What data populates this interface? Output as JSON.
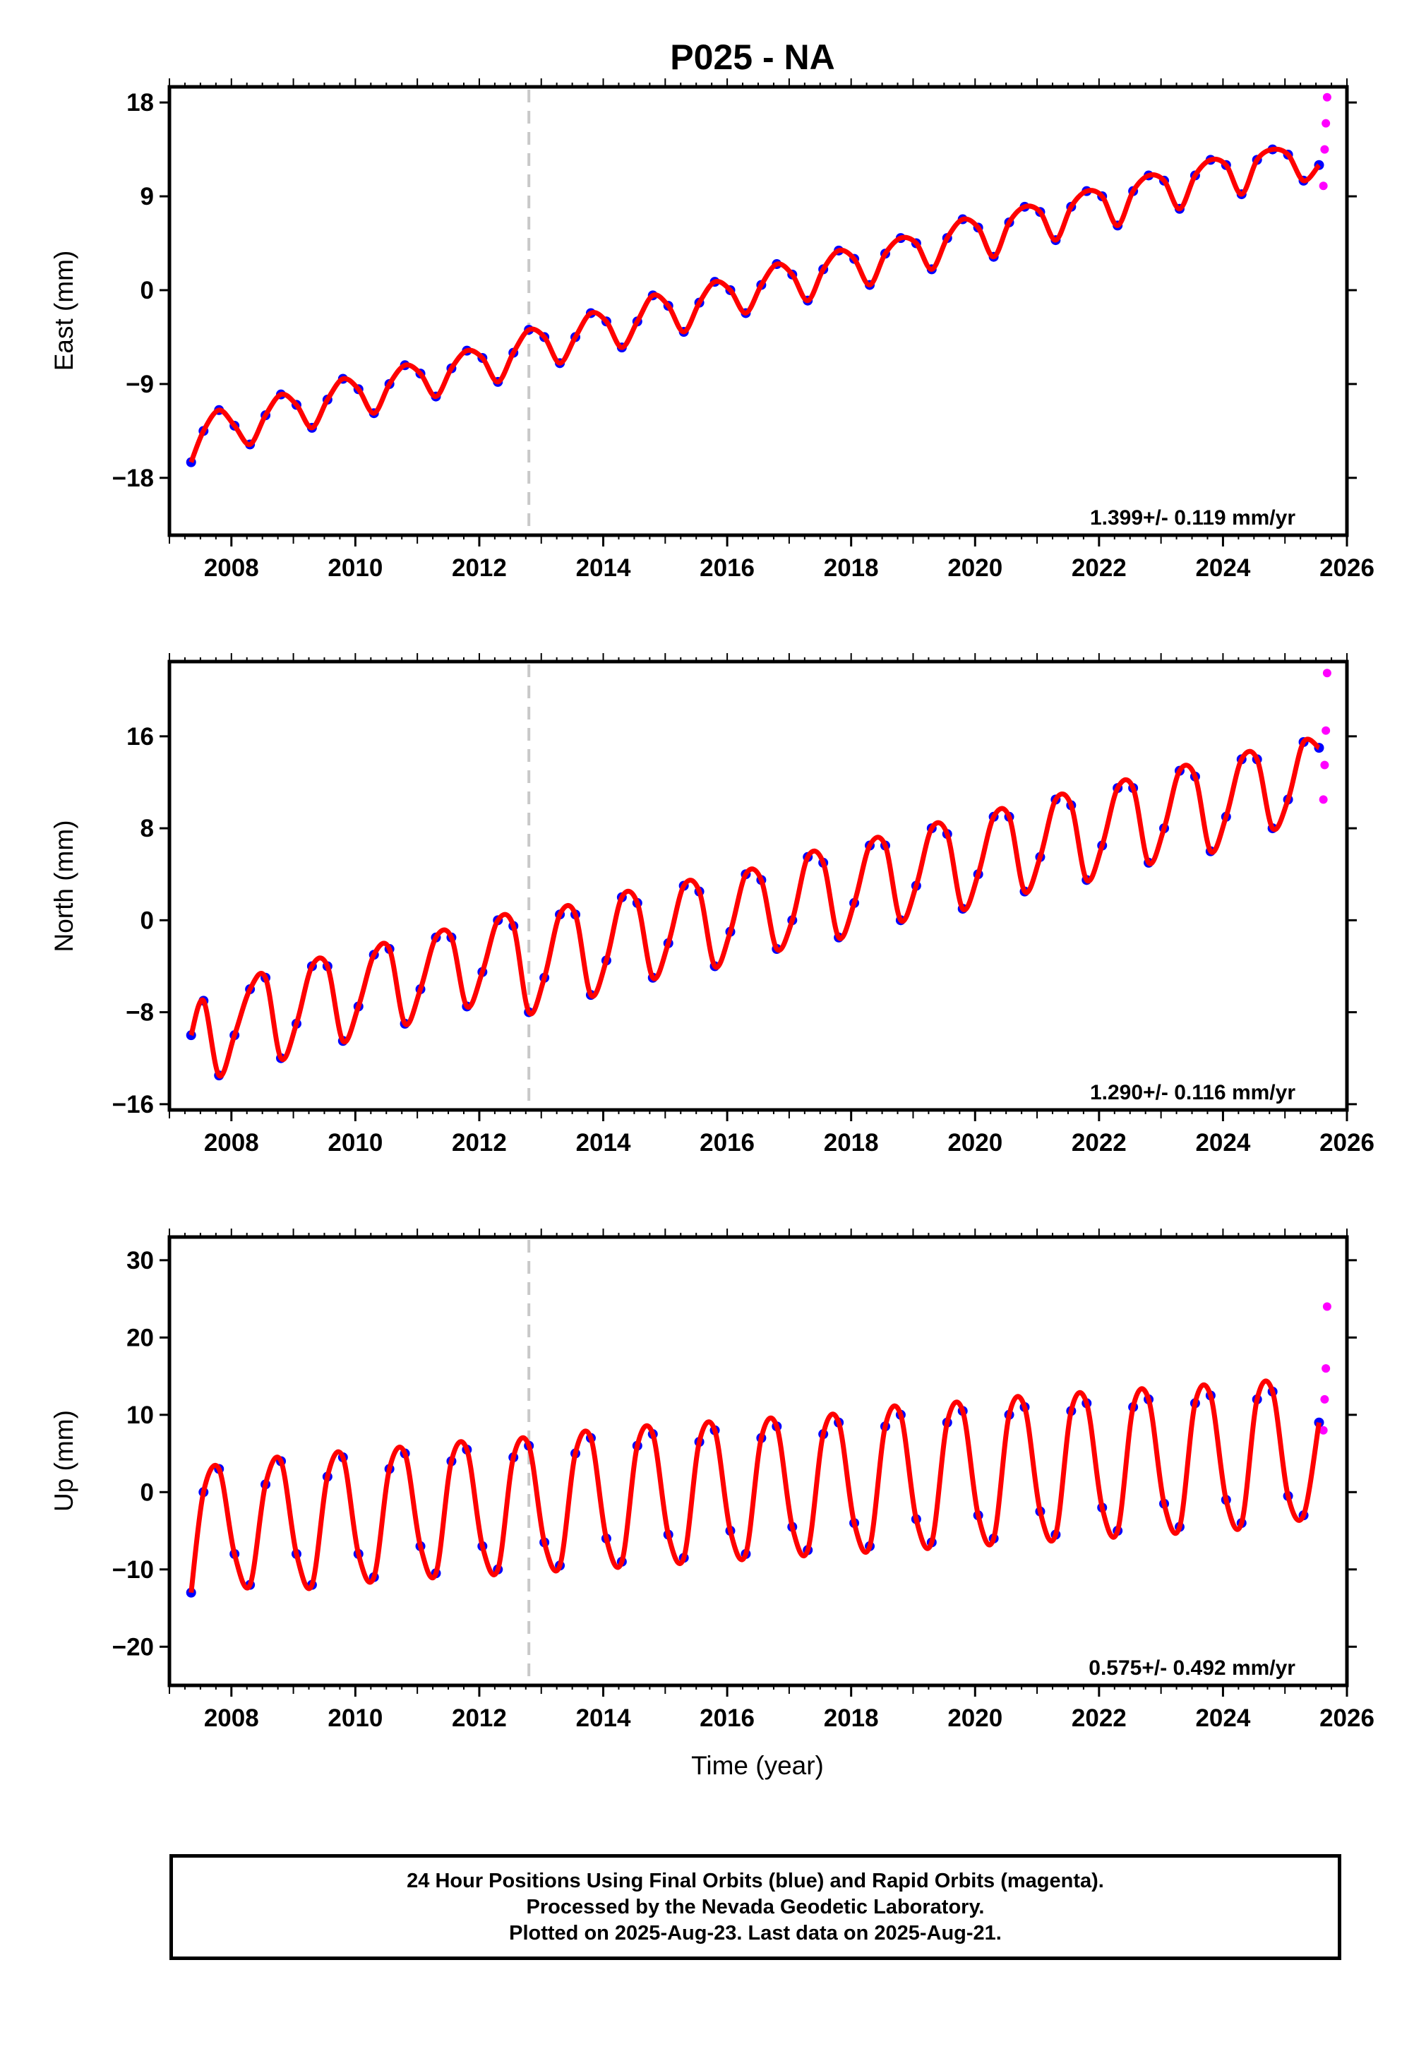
{
  "chart_title": "P025 - NA",
  "colors": {
    "final_orbits": "#0000ff",
    "rapid_orbits": "#ff00ff",
    "model_fit": "#ff0000",
    "event_line": "#c8c8c8",
    "frame": "#000000"
  },
  "chart_data": [
    {
      "type": "scatter",
      "ylabel": "East (mm)",
      "xlabel": "",
      "xlim": [
        2007.0,
        2026.0
      ],
      "ylim": [
        -23.5,
        19.5
      ],
      "yticks": [
        18,
        9,
        0,
        -9,
        -18
      ],
      "ytick_labels": [
        "18",
        "9",
        "0",
        "−9",
        "−18"
      ],
      "xticks": [
        2008,
        2010,
        2012,
        2014,
        2016,
        2018,
        2020,
        2022,
        2024,
        2026
      ],
      "rate_label": "1.399+/- 0.119 mm/yr",
      "event_line_x": 2012.8,
      "grid": false,
      "series": [
        {
          "name": "Final Orbits (blue)",
          "x": [
            2007.35,
            2007.55,
            2007.8,
            2008.05,
            2008.3,
            2008.55,
            2008.8,
            2009.05,
            2009.3,
            2009.55,
            2009.8,
            2010.05,
            2010.3,
            2010.55,
            2010.8,
            2011.05,
            2011.3,
            2011.55,
            2011.8,
            2012.05,
            2012.3,
            2012.55,
            2012.8,
            2013.05,
            2013.3,
            2013.55,
            2013.8,
            2014.05,
            2014.3,
            2014.55,
            2014.8,
            2015.05,
            2015.3,
            2015.55,
            2015.8,
            2016.05,
            2016.3,
            2016.55,
            2016.8,
            2017.05,
            2017.3,
            2017.55,
            2017.8,
            2018.05,
            2018.3,
            2018.55,
            2018.8,
            2019.05,
            2019.3,
            2019.55,
            2019.8,
            2020.05,
            2020.3,
            2020.55,
            2020.8,
            2021.05,
            2021.3,
            2021.55,
            2021.8,
            2022.05,
            2022.3,
            2022.55,
            2022.8,
            2023.05,
            2023.3,
            2023.55,
            2023.8,
            2024.05,
            2024.3,
            2024.55,
            2024.8,
            2025.05,
            2025.3,
            2025.55
          ],
          "values": [
            -16.5,
            -13.5,
            -11.5,
            -13.0,
            -14.8,
            -12.0,
            -10.0,
            -11.0,
            -13.2,
            -10.5,
            -8.5,
            -9.5,
            -11.8,
            -9.0,
            -7.2,
            -8.0,
            -10.2,
            -7.5,
            -5.8,
            -6.5,
            -8.8,
            -6.0,
            -3.8,
            -4.5,
            -7.0,
            -4.5,
            -2.2,
            -3.0,
            -5.5,
            -3.0,
            -0.5,
            -1.5,
            -4.0,
            -1.2,
            0.8,
            0.0,
            -2.2,
            0.5,
            2.5,
            1.5,
            -1.0,
            2.0,
            3.8,
            3.0,
            0.5,
            3.5,
            5.0,
            4.5,
            2.0,
            5.0,
            6.8,
            6.0,
            3.2,
            6.5,
            8.0,
            7.5,
            4.8,
            8.0,
            9.5,
            9.0,
            6.2,
            9.5,
            11.0,
            10.5,
            7.8,
            11.0,
            12.5,
            12.0,
            9.2,
            12.5,
            13.5,
            13.0,
            10.5,
            12.0
          ]
        },
        {
          "name": "Rapid Orbits (magenta)",
          "x": [
            2025.62,
            2025.64,
            2025.66,
            2025.68
          ],
          "values": [
            10.0,
            13.5,
            16.0,
            18.5
          ]
        }
      ]
    },
    {
      "type": "scatter",
      "ylabel": "North (mm)",
      "xlabel": "",
      "xlim": [
        2007.0,
        2026.0
      ],
      "ylim": [
        -16.5,
        22.5
      ],
      "yticks": [
        16,
        8,
        0,
        -8,
        -16
      ],
      "ytick_labels": [
        "16",
        "8",
        "0",
        "−8",
        "−16"
      ],
      "xticks": [
        2008,
        2010,
        2012,
        2014,
        2016,
        2018,
        2020,
        2022,
        2024,
        2026
      ],
      "rate_label": "1.290+/- 0.116 mm/yr",
      "event_line_x": 2012.8,
      "grid": false,
      "series": [
        {
          "name": "Final Orbits (blue)",
          "x": [
            2007.35,
            2007.55,
            2007.8,
            2008.05,
            2008.3,
            2008.55,
            2008.8,
            2009.05,
            2009.3,
            2009.55,
            2009.8,
            2010.05,
            2010.3,
            2010.55,
            2010.8,
            2011.05,
            2011.3,
            2011.55,
            2011.8,
            2012.05,
            2012.3,
            2012.55,
            2012.8,
            2013.05,
            2013.3,
            2013.55,
            2013.8,
            2014.05,
            2014.3,
            2014.55,
            2014.8,
            2015.05,
            2015.3,
            2015.55,
            2015.8,
            2016.05,
            2016.3,
            2016.55,
            2016.8,
            2017.05,
            2017.3,
            2017.55,
            2017.8,
            2018.05,
            2018.3,
            2018.55,
            2018.8,
            2019.05,
            2019.3,
            2019.55,
            2019.8,
            2020.05,
            2020.3,
            2020.55,
            2020.8,
            2021.05,
            2021.3,
            2021.55,
            2021.8,
            2022.05,
            2022.3,
            2022.55,
            2022.8,
            2023.05,
            2023.3,
            2023.55,
            2023.8,
            2024.05,
            2024.3,
            2024.55,
            2024.8,
            2025.05,
            2025.3,
            2025.55
          ],
          "values": [
            -10.0,
            -7.0,
            -13.5,
            -10.0,
            -6.0,
            -5.0,
            -12.0,
            -9.0,
            -4.0,
            -4.0,
            -10.5,
            -7.5,
            -3.0,
            -2.5,
            -9.0,
            -6.0,
            -1.5,
            -1.5,
            -7.5,
            -4.5,
            0.0,
            -0.5,
            -8.0,
            -5.0,
            0.5,
            0.5,
            -6.5,
            -3.5,
            2.0,
            1.5,
            -5.0,
            -2.0,
            3.0,
            2.5,
            -4.0,
            -1.0,
            4.0,
            3.5,
            -2.5,
            0.0,
            5.5,
            5.0,
            -1.5,
            1.5,
            6.5,
            6.5,
            0.0,
            3.0,
            8.0,
            7.5,
            1.0,
            4.0,
            9.0,
            9.0,
            2.5,
            5.5,
            10.5,
            10.0,
            3.5,
            6.5,
            11.5,
            11.5,
            5.0,
            8.0,
            13.0,
            12.5,
            6.0,
            9.0,
            14.0,
            14.0,
            8.0,
            10.5,
            15.5,
            15.0
          ]
        },
        {
          "name": "Rapid Orbits (magenta)",
          "x": [
            2025.62,
            2025.64,
            2025.66,
            2025.68
          ],
          "values": [
            10.5,
            13.5,
            16.5,
            21.5
          ]
        }
      ]
    },
    {
      "type": "scatter",
      "ylabel": "Up (mm)",
      "xlabel": "Time (year)",
      "xlim": [
        2007.0,
        2026.0
      ],
      "ylim": [
        -25,
        33
      ],
      "yticks": [
        30,
        20,
        10,
        0,
        -10,
        -20
      ],
      "ytick_labels": [
        "30",
        "20",
        "10",
        "0",
        "−10",
        "−20"
      ],
      "xticks": [
        2008,
        2010,
        2012,
        2014,
        2016,
        2018,
        2020,
        2022,
        2024,
        2026
      ],
      "rate_label": "0.575+/- 0.492 mm/yr",
      "event_line_x": 2012.8,
      "grid": false,
      "series": [
        {
          "name": "Final Orbits (blue)",
          "x": [
            2007.35,
            2007.55,
            2007.8,
            2008.05,
            2008.3,
            2008.55,
            2008.8,
            2009.05,
            2009.3,
            2009.55,
            2009.8,
            2010.05,
            2010.3,
            2010.55,
            2010.8,
            2011.05,
            2011.3,
            2011.55,
            2011.8,
            2012.05,
            2012.3,
            2012.55,
            2012.8,
            2013.05,
            2013.3,
            2013.55,
            2013.8,
            2014.05,
            2014.3,
            2014.55,
            2014.8,
            2015.05,
            2015.3,
            2015.55,
            2015.8,
            2016.05,
            2016.3,
            2016.55,
            2016.8,
            2017.05,
            2017.3,
            2017.55,
            2017.8,
            2018.05,
            2018.3,
            2018.55,
            2018.8,
            2019.05,
            2019.3,
            2019.55,
            2019.8,
            2020.05,
            2020.3,
            2020.55,
            2020.8,
            2021.05,
            2021.3,
            2021.55,
            2021.8,
            2022.05,
            2022.3,
            2022.55,
            2022.8,
            2023.05,
            2023.3,
            2023.55,
            2023.8,
            2024.05,
            2024.3,
            2024.55,
            2024.8,
            2025.05,
            2025.3,
            2025.55
          ],
          "values": [
            -13.0,
            0.0,
            3.0,
            -8.0,
            -12.0,
            1.0,
            4.0,
            -8.0,
            -12.0,
            2.0,
            4.5,
            -8.0,
            -11.0,
            3.0,
            5.0,
            -7.0,
            -10.5,
            4.0,
            5.5,
            -7.0,
            -10.0,
            4.5,
            6.0,
            -6.5,
            -9.5,
            5.0,
            7.0,
            -6.0,
            -9.0,
            6.0,
            7.5,
            -5.5,
            -8.5,
            6.5,
            8.0,
            -5.0,
            -8.0,
            7.0,
            8.5,
            -4.5,
            -7.5,
            7.5,
            9.0,
            -4.0,
            -7.0,
            8.5,
            10.0,
            -3.5,
            -6.5,
            9.0,
            10.5,
            -3.0,
            -6.0,
            10.0,
            11.0,
            -2.5,
            -5.5,
            10.5,
            11.5,
            -2.0,
            -5.0,
            11.0,
            12.0,
            -1.5,
            -4.5,
            11.5,
            12.5,
            -1.0,
            -4.0,
            12.0,
            13.0,
            -0.5,
            -3.0,
            9.0
          ]
        },
        {
          "name": "Rapid Orbits (magenta)",
          "x": [
            2025.62,
            2025.64,
            2025.66,
            2025.68
          ],
          "values": [
            8.0,
            12.0,
            16.0,
            24.0
          ]
        }
      ]
    }
  ],
  "caption": {
    "line1": "24 Hour Positions Using Final Orbits (blue) and Rapid Orbits (magenta).",
    "line2": "Processed by the Nevada Geodetic Laboratory.",
    "line3": "Plotted on 2025-Aug-23. Last data on 2025-Aug-21."
  }
}
